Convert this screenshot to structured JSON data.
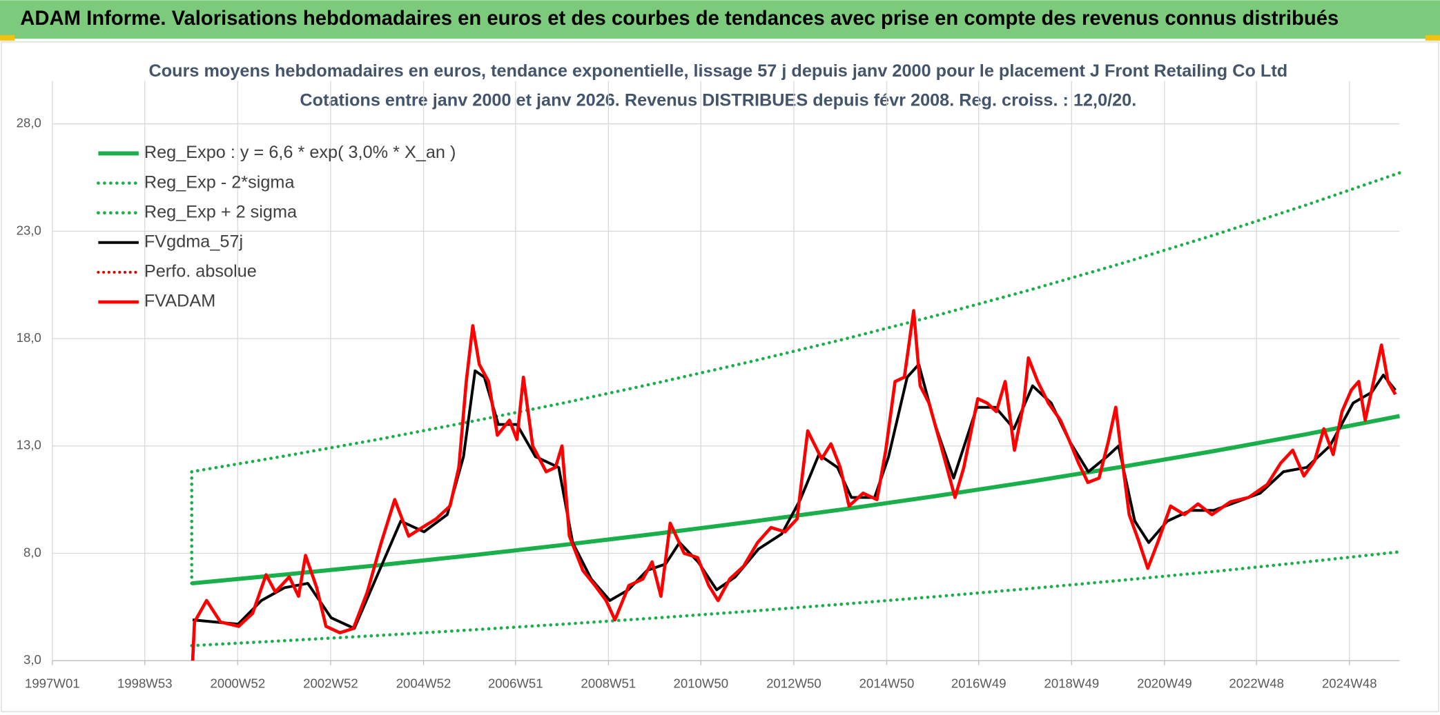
{
  "header": {
    "title": "ADAM Informe. Valorisations hebdomadaires en euros et des courbes de tendances avec prise en compte des revenus connus distribués"
  },
  "chart_data": {
    "type": "line",
    "title": "Cours moyens hebdomadaires en euros, tendance exponentielle, lissage 57 j depuis janv 2000 pour le placement J Front Retailing Co Ltd",
    "subtitle": "Cotations entre janv 2000 et janv 2026. Revenus DISTRIBUES depuis févr 2008. Reg. croiss. : 12,0/20.",
    "xlim": [
      1997,
      2026
    ],
    "xticks": [
      {
        "value": 1997.0,
        "label": "1997W01"
      },
      {
        "value": 1998.99,
        "label": "1998W53"
      },
      {
        "value": 2000.99,
        "label": "2000W52"
      },
      {
        "value": 2002.99,
        "label": "2002W52"
      },
      {
        "value": 2004.99,
        "label": "2004W52"
      },
      {
        "value": 2006.97,
        "label": "2006W51"
      },
      {
        "value": 2008.97,
        "label": "2008W51"
      },
      {
        "value": 2010.96,
        "label": "2010W50"
      },
      {
        "value": 2012.96,
        "label": "2012W50"
      },
      {
        "value": 2014.96,
        "label": "2014W50"
      },
      {
        "value": 2016.94,
        "label": "2016W49"
      },
      {
        "value": 2018.94,
        "label": "2018W49"
      },
      {
        "value": 2020.94,
        "label": "2020W49"
      },
      {
        "value": 2022.92,
        "label": "2022W48"
      },
      {
        "value": 2024.92,
        "label": "2024W48"
      }
    ],
    "ylim": [
      3,
      30
    ],
    "yticks": [
      {
        "value": 3,
        "label": "3,0"
      },
      {
        "value": 8,
        "label": "8,0"
      },
      {
        "value": 13,
        "label": "13,0"
      },
      {
        "value": 18,
        "label": "18,0"
      },
      {
        "value": 23,
        "label": "23,0"
      },
      {
        "value": 28,
        "label": "28,0"
      }
    ],
    "grid": true,
    "legend": "top-left",
    "series": [
      {
        "name": "Reg_Expo : y = 6,6 * exp( 3,0% *  X_an )",
        "color": "#1aaf4b",
        "line_style": "solid",
        "width": 4.5,
        "x": [
          2000,
          2002,
          2004,
          2006,
          2008,
          2010,
          2012,
          2014,
          2016,
          2018,
          2020,
          2022,
          2024,
          2026
        ],
        "values": [
          6.6,
          7.01,
          7.44,
          7.9,
          8.39,
          8.91,
          9.46,
          10.04,
          10.66,
          11.32,
          12.02,
          12.76,
          13.55,
          14.39
        ]
      },
      {
        "name": "Reg_Exp - 2*sigma",
        "color": "#1aaf4b",
        "line_style": "dotted",
        "width": 3.5,
        "x": [
          2000,
          2002,
          2004,
          2006,
          2008,
          2010,
          2012,
          2014,
          2016,
          2018,
          2020,
          2022,
          2024,
          2026
        ],
        "values": [
          3.7,
          3.93,
          4.17,
          4.43,
          4.7,
          4.99,
          5.3,
          5.63,
          5.98,
          6.35,
          6.74,
          7.15,
          7.6,
          8.07
        ]
      },
      {
        "name": "Reg_Exp + 2 sigma",
        "color": "#1aaf4b",
        "line_style": "dotted",
        "width": 3.5,
        "x": [
          2000,
          2000,
          2002,
          2004,
          2006,
          2008,
          2010,
          2012,
          2014,
          2016,
          2018,
          2020,
          2022,
          2024,
          2026
        ],
        "values": [
          6.6,
          11.8,
          12.53,
          13.3,
          14.13,
          15.0,
          15.93,
          16.91,
          17.95,
          19.06,
          20.24,
          21.49,
          22.82,
          24.23,
          25.72
        ]
      },
      {
        "name": "FVgdma_57j",
        "color": "#000000",
        "line_style": "solid",
        "width": 3,
        "x": [
          2000.02,
          2000.5,
          2001.0,
          2001.5,
          2002.0,
          2002.5,
          2003.0,
          2003.5,
          2004.0,
          2004.5,
          2005.0,
          2005.5,
          2005.85,
          2006.1,
          2006.3,
          2006.6,
          2007.0,
          2007.4,
          2007.9,
          2008.2,
          2008.6,
          2009.0,
          2009.4,
          2009.8,
          2010.2,
          2010.5,
          2010.9,
          2011.3,
          2011.7,
          2012.2,
          2012.7,
          2013.1,
          2013.5,
          2013.9,
          2014.2,
          2014.7,
          2015.0,
          2015.4,
          2015.65,
          2016.0,
          2016.4,
          2016.9,
          2017.3,
          2017.7,
          2018.1,
          2018.5,
          2018.9,
          2019.3,
          2019.7,
          2019.95,
          2020.3,
          2020.6,
          2021.0,
          2021.5,
          2022.0,
          2022.5,
          2023.0,
          2023.5,
          2024.0,
          2024.5,
          2025.0,
          2025.4,
          2025.65,
          2025.91
        ],
        "values": [
          4.9,
          4.8,
          4.7,
          5.8,
          6.4,
          6.6,
          5.0,
          4.5,
          7.0,
          9.5,
          9.0,
          9.8,
          12.5,
          16.5,
          16.2,
          14.0,
          14.0,
          12.5,
          12.0,
          8.5,
          6.8,
          5.8,
          6.3,
          7.2,
          7.5,
          8.5,
          7.6,
          6.3,
          6.9,
          8.2,
          8.9,
          10.5,
          12.6,
          12.0,
          10.6,
          10.6,
          12.5,
          16.2,
          16.8,
          14.0,
          11.5,
          14.8,
          14.8,
          13.8,
          15.8,
          15.0,
          13.2,
          11.8,
          12.5,
          13.0,
          9.5,
          8.5,
          9.5,
          10.0,
          10.0,
          10.4,
          10.8,
          11.8,
          12.0,
          13.0,
          15.0,
          15.5,
          16.3,
          15.6
        ]
      },
      {
        "name": "Perfo. absolue",
        "color": "#e00000",
        "line_style": "dotted",
        "width": 3,
        "x": [],
        "values": []
      },
      {
        "name": "FVADAM",
        "color": "#ff0000",
        "line_style": "solid",
        "width": 3.5,
        "x": [
          2000.02,
          2000.06,
          2000.32,
          2000.62,
          2001.01,
          2001.31,
          2001.6,
          2001.8,
          2002.1,
          2002.3,
          2002.45,
          2002.69,
          2002.89,
          2003.19,
          2003.48,
          2003.78,
          2004.08,
          2004.37,
          2004.67,
          2004.96,
          2005.26,
          2005.56,
          2005.75,
          2005.91,
          2006.05,
          2006.19,
          2006.39,
          2006.58,
          2006.84,
          2007.0,
          2007.14,
          2007.34,
          2007.63,
          2007.83,
          2007.97,
          2008.13,
          2008.42,
          2008.68,
          2008.92,
          2009.11,
          2009.41,
          2009.71,
          2009.91,
          2010.1,
          2010.3,
          2010.6,
          2010.89,
          2011.13,
          2011.33,
          2011.58,
          2011.88,
          2012.18,
          2012.47,
          2012.77,
          2013.03,
          2013.26,
          2013.56,
          2013.76,
          2013.96,
          2014.15,
          2014.45,
          2014.75,
          2014.94,
          2015.14,
          2015.34,
          2015.54,
          2015.68,
          2015.87,
          2016.13,
          2016.43,
          2016.62,
          2016.92,
          2017.12,
          2017.32,
          2017.51,
          2017.71,
          2017.91,
          2018.01,
          2018.21,
          2018.44,
          2018.7,
          2018.9,
          2019.09,
          2019.29,
          2019.53,
          2019.73,
          2019.89,
          2020.02,
          2020.18,
          2020.38,
          2020.58,
          2020.81,
          2021.07,
          2021.37,
          2021.66,
          2021.96,
          2022.36,
          2022.75,
          2023.15,
          2023.44,
          2023.7,
          2023.94,
          2024.17,
          2024.37,
          2024.57,
          2024.76,
          2024.96,
          2025.12,
          2025.26,
          2025.42,
          2025.61,
          2025.75,
          2025.91
        ],
        "values": [
          3.0,
          4.8,
          5.8,
          4.8,
          4.6,
          5.2,
          7.0,
          6.2,
          6.9,
          6.0,
          7.9,
          6.4,
          4.6,
          4.3,
          4.5,
          6.2,
          8.5,
          10.5,
          8.8,
          9.2,
          9.6,
          10.2,
          12.0,
          16.0,
          18.6,
          16.8,
          16.0,
          13.5,
          14.2,
          13.3,
          16.2,
          13.0,
          11.8,
          12.0,
          13.0,
          8.8,
          7.2,
          6.5,
          5.8,
          4.9,
          6.5,
          6.8,
          7.6,
          6.0,
          9.4,
          8.0,
          7.8,
          6.5,
          5.8,
          6.8,
          7.4,
          8.5,
          9.2,
          9.0,
          9.6,
          13.7,
          12.4,
          13.1,
          12.0,
          10.2,
          10.8,
          10.5,
          12.8,
          16.0,
          16.2,
          19.3,
          15.8,
          15.0,
          13.0,
          10.6,
          12.0,
          15.2,
          15.0,
          14.6,
          16.0,
          12.8,
          15.0,
          17.1,
          16.0,
          15.0,
          14.2,
          13.2,
          12.2,
          11.3,
          11.5,
          13.2,
          14.8,
          12.5,
          9.8,
          8.6,
          7.3,
          8.6,
          10.2,
          9.8,
          10.3,
          9.8,
          10.4,
          10.6,
          11.2,
          12.2,
          12.8,
          11.6,
          12.3,
          13.8,
          12.6,
          14.6,
          15.6,
          16.0,
          14.2,
          15.8,
          17.7,
          16.0,
          15.4
        ]
      }
    ]
  }
}
